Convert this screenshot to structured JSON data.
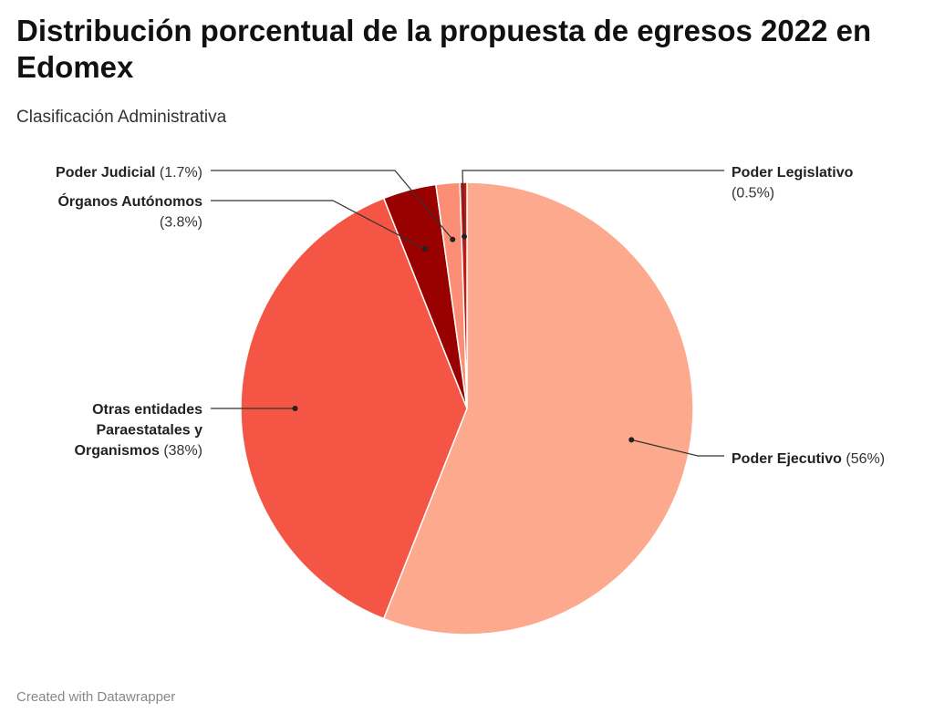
{
  "title": "Distribución porcentual de la propuesta de egresos 2022 en Edomex",
  "subtitle": "Clasificación Administrativa",
  "footer": "Created with Datawrapper",
  "chart_data": {
    "type": "pie",
    "title": "Distribución porcentual de la propuesta de egresos 2022 en Edomex",
    "subtitle": "Clasificación Administrativa",
    "unit": "%",
    "slices": [
      {
        "label": "Poder Ejecutivo",
        "value": 56,
        "value_label": "(56%)",
        "color": "#fca98d"
      },
      {
        "label": "Otras entidades Paraestatales y Organismos",
        "value": 38,
        "value_label": "(38%)",
        "color": "#f55544"
      },
      {
        "label": "Órganos Autónomos",
        "value": 3.8,
        "value_label": "(3.8%)",
        "color": "#990000"
      },
      {
        "label": "Poder Judicial",
        "value": 1.7,
        "value_label": "(1.7%)",
        "color": "#fb8e74"
      },
      {
        "label": "Poder Legislativo",
        "value": 0.5,
        "value_label": "(0.5%)",
        "color": "#c41a14"
      }
    ]
  }
}
